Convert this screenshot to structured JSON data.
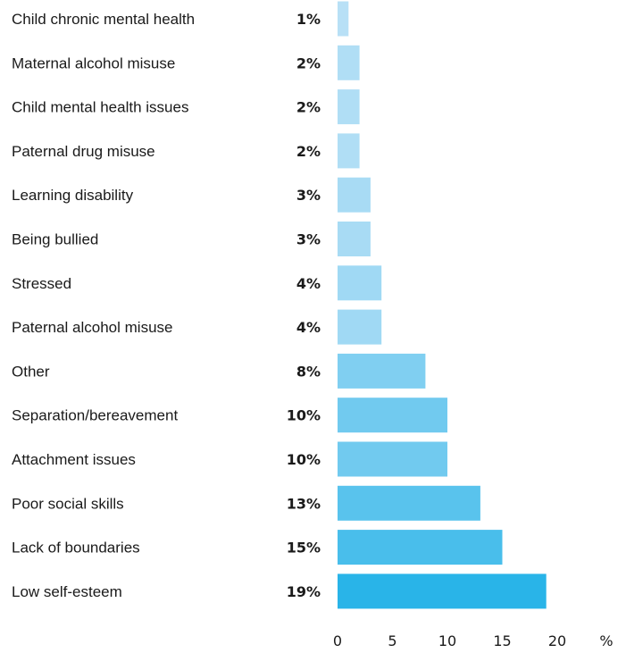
{
  "chart_data": {
    "type": "bar",
    "orientation": "horizontal",
    "categories": [
      "Child chronic mental health",
      "Maternal alcohol misuse",
      "Child mental health issues",
      "Paternal drug misuse",
      "Learning disability",
      "Being bullied",
      "Stressed",
      "Paternal alcohol misuse",
      "Other",
      "Separation/bereavement",
      "Attachment issues",
      "Poor social skills",
      "Lack of boundaries",
      "Low self-esteem"
    ],
    "values": [
      1,
      2,
      2,
      2,
      3,
      3,
      4,
      4,
      8,
      10,
      10,
      13,
      15,
      19
    ],
    "value_labels": [
      "1%",
      "2%",
      "2%",
      "2%",
      "3%",
      "3%",
      "4%",
      "4%",
      "8%",
      "10%",
      "10%",
      "13%",
      "15%",
      "19%"
    ],
    "xlim": [
      0,
      20
    ],
    "x_ticks": [
      "0",
      "5",
      "10",
      "15",
      "20"
    ],
    "x_unit_label": "%",
    "grid": false,
    "colors": {
      "light": "#b8e0f6",
      "dark": "#29b4e8"
    }
  }
}
